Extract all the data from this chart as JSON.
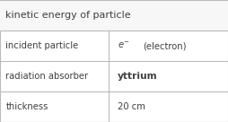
{
  "title": "kinetic energy of particle",
  "rows": [
    {
      "label": "incident particle",
      "value_mixed": true
    },
    {
      "label": "radiation absorber",
      "value": "yttrium",
      "value_bold": true
    },
    {
      "label": "thickness",
      "value": "20 cm",
      "value_bold": false
    }
  ],
  "col_split": 0.475,
  "border_color": "#bbbbbb",
  "bg_color": "#ffffff",
  "title_bg": "#ffffff",
  "text_color": "#404040",
  "title_fontsize": 8.0,
  "label_fontsize": 7.2,
  "value_fontsize": 7.2,
  "fig_width": 2.54,
  "fig_height": 1.36,
  "dpi": 100
}
